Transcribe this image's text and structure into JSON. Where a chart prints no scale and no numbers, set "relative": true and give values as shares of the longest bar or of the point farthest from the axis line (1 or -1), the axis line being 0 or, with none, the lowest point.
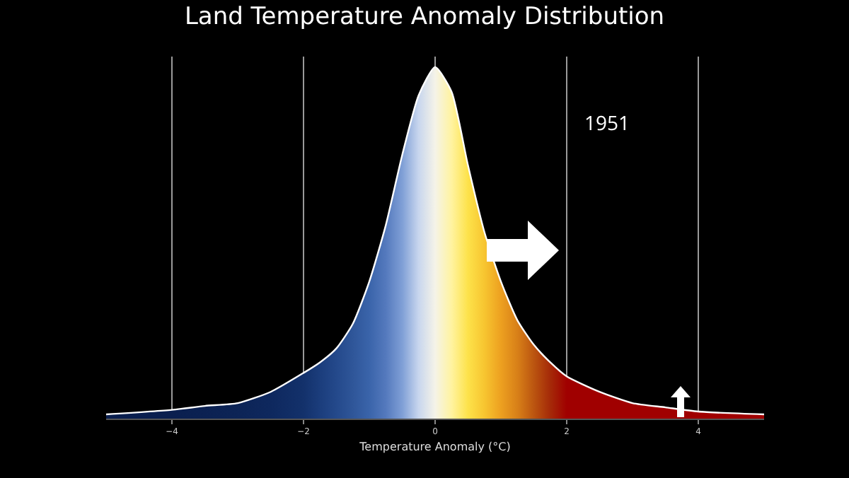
{
  "chart_data": {
    "type": "area",
    "title": "Land Temperature Anomaly Distribution",
    "xlabel": "Temperature Anomaly (°C)",
    "annotations": [
      "1951"
    ],
    "relative": true,
    "xlim": [
      -5,
      5
    ],
    "xticks": [
      {
        "value": -4,
        "label": "−4"
      },
      {
        "value": -2,
        "label": "−2"
      },
      0,
      2,
      4
    ],
    "grid": "x",
    "x": [
      -5,
      -4,
      -3.5,
      -3,
      -2.5,
      -2,
      -1.75,
      -1.5,
      -1.25,
      -1,
      -0.75,
      -0.5,
      -0.25,
      0,
      0.25,
      0.5,
      0.75,
      1,
      1.25,
      1.5,
      1.75,
      2,
      2.5,
      3,
      3.5,
      4,
      5
    ],
    "series": [
      {
        "color": "#ffffff",
        "values": [
          0.012,
          0.025,
          0.036,
          0.044,
          0.076,
          0.13,
          0.16,
          0.2,
          0.27,
          0.39,
          0.55,
          0.75,
          0.92,
          1,
          0.93,
          0.72,
          0.53,
          0.39,
          0.28,
          0.21,
          0.16,
          0.12,
          0.076,
          0.044,
          0.032,
          0.02,
          0.012
        ],
        "colors": [
          "#0a1f4f",
          "#0a1f4f",
          "#0b2152",
          "#0c2456",
          "#0e285e",
          "#13316b",
          "#1b3d7c",
          "#24498b",
          "#2f5699",
          "#3a64aa",
          "#5479bd",
          "#7f9fd6",
          "#c8d6ee",
          "#f5f3e8",
          "#fff3a0",
          "#fde24a",
          "#f7c530",
          "#eda020",
          "#d88018",
          "#bb5510",
          "#a52a08",
          "#a00000",
          "#a00000",
          "#a00000",
          "#a00000",
          "#a00000",
          "#a00000"
        ]
      }
    ]
  }
}
